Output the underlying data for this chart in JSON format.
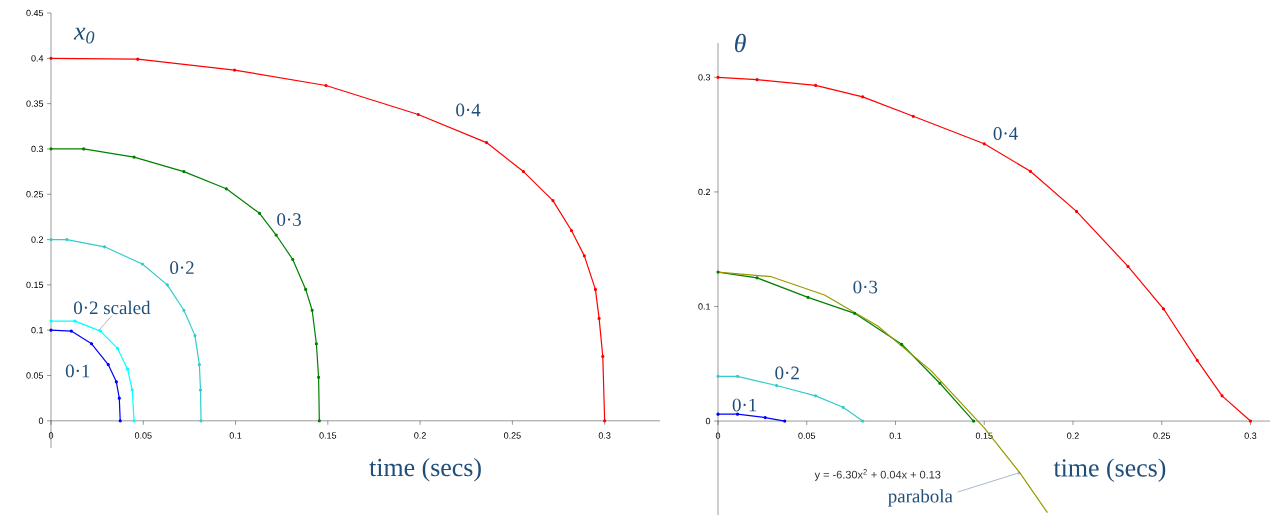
{
  "chart_data": [
    {
      "type": "line",
      "xlabel": "time (secs)",
      "ylabel": "x$_{0}$",
      "xlim": [
        0,
        0.33
      ],
      "ylim": [
        -0.03,
        0.45
      ],
      "xticks": [
        0,
        0.05,
        0.1,
        0.15,
        0.2,
        0.25,
        0.3
      ],
      "yticks": [
        0,
        0.05,
        0.1,
        0.15,
        0.2,
        0.25,
        0.3,
        0.35,
        0.4,
        0.45
      ],
      "marker": "circle",
      "series": [
        {
          "name": "0·4",
          "color": "#ff0000",
          "x": [
            0,
            0.047,
            0.0995,
            0.149,
            0.199,
            0.236,
            0.256,
            0.272,
            0.282,
            0.289,
            0.295,
            0.297,
            0.299,
            0.3
          ],
          "values": [
            0.4,
            0.399,
            0.387,
            0.37,
            0.338,
            0.307,
            0.275,
            0.243,
            0.21,
            0.182,
            0.145,
            0.113,
            0.071,
            0
          ]
        },
        {
          "name": "0·3",
          "color": "#008000",
          "x": [
            0,
            0.0177,
            0.045,
            0.072,
            0.095,
            0.113,
            0.122,
            0.131,
            0.138,
            0.1415,
            0.1438,
            0.145,
            0.1454
          ],
          "values": [
            0.3,
            0.3,
            0.291,
            0.275,
            0.256,
            0.229,
            0.205,
            0.178,
            0.145,
            0.122,
            0.085,
            0.048,
            0
          ]
        },
        {
          "name": "0·2",
          "color": "#33cccc",
          "x": [
            0,
            0.0086,
            0.029,
            0.0495,
            0.063,
            0.072,
            0.078,
            0.0804,
            0.081,
            0.0813
          ],
          "values": [
            0.2,
            0.2,
            0.192,
            0.173,
            0.15,
            0.122,
            0.094,
            0.062,
            0.034,
            0
          ]
        },
        {
          "name": "0·2 scaled",
          "color": "#00ffff",
          "x": [
            0,
            0.013,
            0.0268,
            0.036,
            0.0415,
            0.044,
            0.045
          ],
          "values": [
            0.11,
            0.11,
            0.099,
            0.08,
            0.057,
            0.034,
            0
          ]
        },
        {
          "name": "0·1",
          "color": "#0000ff",
          "x": [
            0,
            0.011,
            0.022,
            0.031,
            0.0354,
            0.037,
            0.0375
          ],
          "values": [
            0.1,
            0.099,
            0.085,
            0.062,
            0.043,
            0.025,
            0
          ]
        }
      ]
    },
    {
      "type": "line",
      "xlabel": "time (secs)",
      "ylabel": "θ",
      "xlim": [
        0,
        0.311
      ],
      "ylim": [
        -0.082,
        0.33
      ],
      "xticks": [
        0,
        0.05,
        0.1,
        0.15,
        0.2,
        0.25,
        0.3
      ],
      "yticks": [
        0,
        0.1,
        0.2,
        0.3
      ],
      "marker": "circle",
      "annotations": [
        "y = -6.30x$^{2}$ + 0.04x + 0.13"
      ],
      "series": [
        {
          "name": "0·4",
          "color": "#ff0000",
          "x": [
            0,
            0.022,
            0.055,
            0.0815,
            0.11,
            0.15,
            0.176,
            0.202,
            0.231,
            0.251,
            0.27,
            0.284,
            0.3
          ],
          "values": [
            0.3,
            0.298,
            0.293,
            0.283,
            0.266,
            0.242,
            0.218,
            0.183,
            0.135,
            0.098,
            0.053,
            0.022,
            0
          ]
        },
        {
          "name": "0·3",
          "color": "#008000",
          "x": [
            0,
            0.022,
            0.0507,
            0.077,
            0.1035,
            0.125,
            0.144
          ],
          "values": [
            0.13,
            0.125,
            0.108,
            0.094,
            0.067,
            0.033,
            0
          ]
        },
        {
          "name": "0·2",
          "color": "#33cccc",
          "x": [
            0,
            0.011,
            0.033,
            0.055,
            0.0705,
            0.0815
          ],
          "values": [
            0.039,
            0.039,
            0.031,
            0.022,
            0.012,
            0
          ]
        },
        {
          "name": "0·1",
          "color": "#0000ff",
          "x": [
            0,
            0.011,
            0.0266,
            0.0376
          ],
          "values": [
            0.006,
            0.006,
            0.003,
            0
          ]
        },
        {
          "name": "parabola",
          "type": "line",
          "marker": "none",
          "color": "#999900",
          "x": [
            0,
            0.03,
            0.06,
            0.09,
            0.12,
            0.15,
            0.17,
            0.1856
          ],
          "values": [
            0.13,
            0.126,
            0.11,
            0.083,
            0.044,
            -0.006,
            -0.045,
            -0.08
          ]
        }
      ]
    }
  ]
}
